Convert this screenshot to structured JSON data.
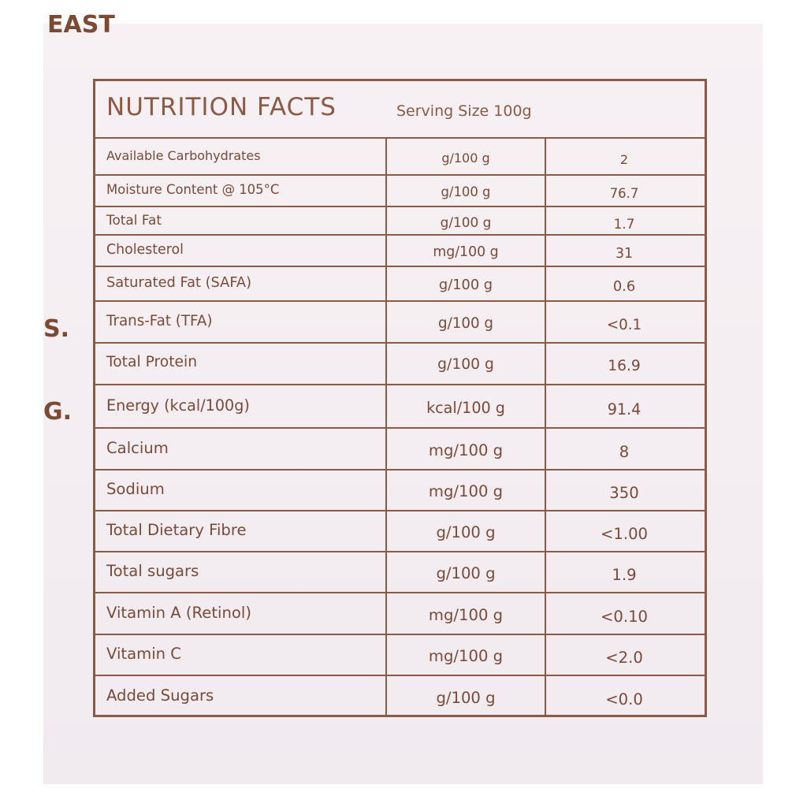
{
  "fragments": [
    "EAST",
    "S.",
    "G."
  ],
  "header": {
    "title": "NUTRITION FACTS",
    "serving_size": "Serving Size 100g"
  },
  "table": {
    "rows": [
      [
        "Available Carbohydrates",
        "g/100 g",
        "2"
      ],
      [
        "Moisture Content @ 105°C",
        "g/100 g",
        "76.7"
      ],
      [
        "Total Fat",
        "g/100 g",
        "1.7"
      ],
      [
        "Cholesterol",
        "mg/100 g",
        "31"
      ],
      [
        "Saturated Fat (SAFA)",
        "g/100 g",
        "0.6"
      ],
      [
        "Trans-Fat (TFA)",
        "g/100 g",
        "<0.1"
      ],
      [
        "Total Protein",
        "g/100 g",
        "16.9"
      ],
      [
        "Energy (kcal/100g)",
        "kcal/100 g",
        "91.4"
      ],
      [
        "Calcium",
        "mg/100 g",
        "8"
      ],
      [
        "Sodium",
        "mg/100 g",
        "350"
      ],
      [
        "Total Dietary Fibre",
        "g/100 g",
        "<1.00"
      ],
      [
        "Total sugars",
        "g/100 g",
        "1.9"
      ],
      [
        "Vitamin A (Retinol)",
        "mg/100 g",
        "<0.10"
      ],
      [
        "Vitamin C",
        "mg/100 g",
        "<2.0"
      ],
      [
        "Added Sugars",
        "g/100 g",
        "<0.0"
      ]
    ]
  }
}
